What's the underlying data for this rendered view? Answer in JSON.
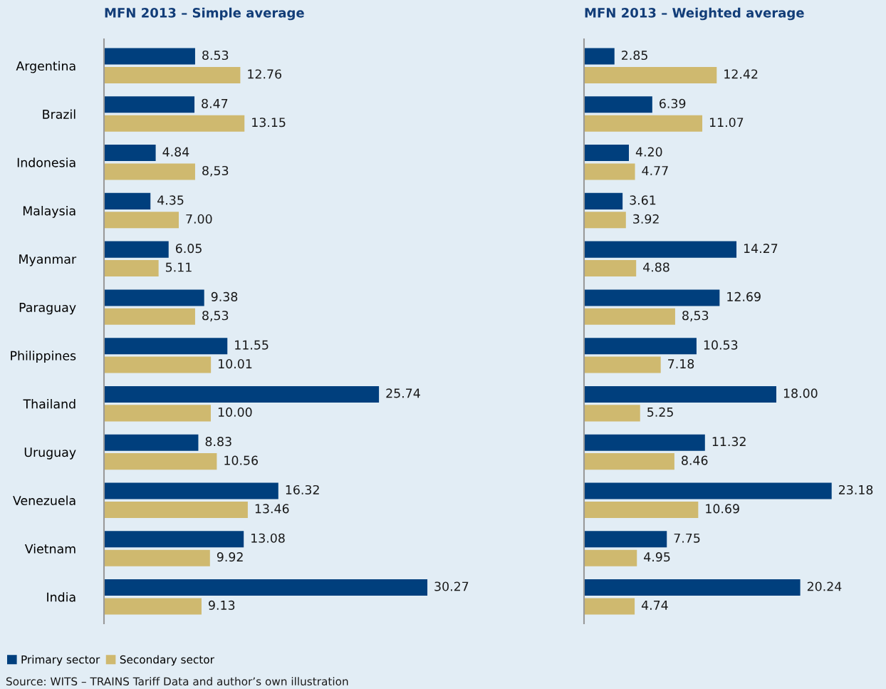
{
  "chart_data": [
    {
      "type": "bar",
      "orientation": "horizontal",
      "title": "MFN 2013 – Simple average",
      "categories": [
        "Argentina",
        "Brazil",
        "Indonesia",
        "Malaysia",
        "Myanmar",
        "Paraguay",
        "Philippines",
        "Thailand",
        "Uruguay",
        "Venezuela",
        "Vietnam",
        "India"
      ],
      "series": [
        {
          "name": "Primary sector",
          "color": "#003f7d",
          "values": [
            8.53,
            8.47,
            4.84,
            4.35,
            6.05,
            9.38,
            11.55,
            25.74,
            8.83,
            16.32,
            13.08,
            30.27
          ],
          "value_labels": [
            "8.53",
            "8.47",
            "4.84",
            "4.35",
            "6.05",
            "9.38",
            "11.55",
            "25.74",
            "8.83",
            "16.32",
            "13.08",
            "30.27"
          ]
        },
        {
          "name": "Secondary sector",
          "color": "#cfb96f",
          "values": [
            12.76,
            13.15,
            8.53,
            7.0,
            5.11,
            8.53,
            10.01,
            10.0,
            10.56,
            13.46,
            9.92,
            9.13
          ],
          "value_labels": [
            "12.76",
            "13.15",
            "8,53",
            "7.00",
            "5.11",
            "8,53",
            "10.01",
            "10.00",
            "10.56",
            "13.46",
            "9.92",
            "9.13"
          ]
        }
      ],
      "legend": "bottom left",
      "annotations": [
        "Source: WITS – TRAINS Tariff Data and author’s own illustration"
      ]
    },
    {
      "type": "bar",
      "orientation": "horizontal",
      "title": "MFN 2013 – Weighted average",
      "categories": [
        null,
        null,
        null,
        null,
        null,
        null,
        null,
        null,
        null,
        null,
        null,
        null
      ],
      "series": [
        {
          "color": "#003f7d",
          "values": [
            2.85,
            6.39,
            4.2,
            3.61,
            14.27,
            12.69,
            10.53,
            18.0,
            11.32,
            23.18,
            7.75,
            20.24
          ],
          "value_labels": [
            "2.85",
            "6.39",
            "4.20",
            "3.61",
            "14.27",
            "12.69",
            "10.53",
            "18.00",
            "11.32",
            "23.18",
            "7.75",
            "20.24"
          ]
        },
        {
          "color": "#cfb96f",
          "values": [
            12.42,
            11.07,
            4.77,
            3.92,
            4.88,
            8.53,
            7.18,
            5.25,
            8.46,
            10.69,
            4.95,
            4.74
          ],
          "value_labels": [
            "12.42",
            "11.07",
            "4.77",
            "3.92",
            "4.88",
            "8,53",
            "7.18",
            "5.25",
            "8.46",
            "10.69",
            "4.95",
            "4.74"
          ]
        }
      ]
    }
  ]
}
